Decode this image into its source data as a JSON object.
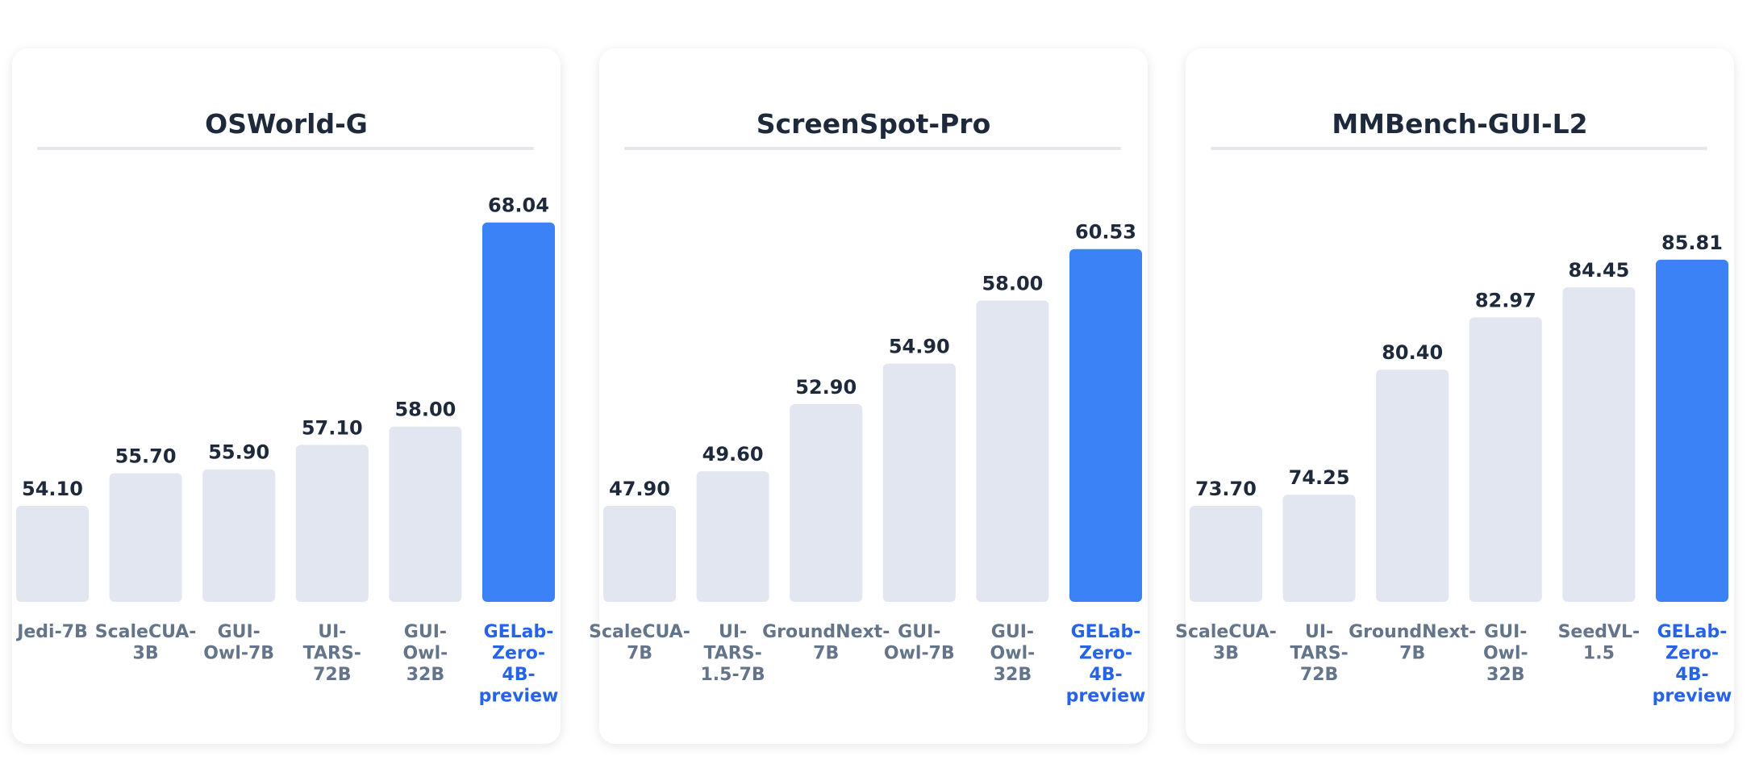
{
  "colors": {
    "bar_default": "#e2e6f0",
    "bar_highlight": "#3b82f6",
    "label_default": "#64748b",
    "label_highlight": "#2563eb",
    "value_text": "#1e293b",
    "title_text": "#1e293b"
  },
  "chart_data": [
    {
      "type": "bar",
      "title": "OSWorld-G",
      "categories": [
        "Jedi-7B",
        "ScaleCUA-3B",
        "GUI-Owl-7B",
        "UI-TARS-72B",
        "GUI-Owl-32B",
        "GELab-Zero-4B-preview"
      ],
      "category_lines": [
        [
          "Jedi-7B"
        ],
        [
          "ScaleCUA-",
          "3B"
        ],
        [
          "GUI-",
          "Owl-7B"
        ],
        [
          "UI-",
          "TARS-",
          "72B"
        ],
        [
          "GUI-",
          "Owl-",
          "32B"
        ],
        [
          "GELab-",
          "Zero-",
          "4B-",
          "preview"
        ]
      ],
      "values": [
        54.1,
        55.7,
        55.9,
        57.1,
        58.0,
        68.04
      ],
      "value_labels": [
        "54.10",
        "55.70",
        "55.90",
        "57.10",
        "58.00",
        "68.04"
      ],
      "highlight": "GELab-Zero-4B-preview",
      "xlabel": "",
      "ylabel": "",
      "grid": false
    },
    {
      "type": "bar",
      "title": "ScreenSpot-Pro",
      "categories": [
        "ScaleCUA-7B",
        "UI-TARS-1.5-7B",
        "GroundNext-7B",
        "GUI-Owl-7B",
        "GUI-Owl-32B",
        "GELab-Zero-4B-preview"
      ],
      "category_lines": [
        [
          "ScaleCUA-",
          "7B"
        ],
        [
          "UI-",
          "TARS-",
          "1.5-7B"
        ],
        [
          "GroundNext-",
          "7B"
        ],
        [
          "GUI-",
          "Owl-7B"
        ],
        [
          "GUI-",
          "Owl-",
          "32B"
        ],
        [
          "GELab-",
          "Zero-",
          "4B-",
          "preview"
        ]
      ],
      "values": [
        47.9,
        49.6,
        52.9,
        54.9,
        58.0,
        60.53
      ],
      "value_labels": [
        "47.90",
        "49.60",
        "52.90",
        "54.90",
        "58.00",
        "60.53"
      ],
      "highlight": "GELab-Zero-4B-preview",
      "xlabel": "",
      "ylabel": "",
      "grid": false
    },
    {
      "type": "bar",
      "title": "MMBench-GUI-L2",
      "categories": [
        "ScaleCUA-3B",
        "UI-TARS-72B",
        "GroundNext-7B",
        "GUI-Owl-32B",
        "SeedVL-1.5",
        "GELab-Zero-4B-preview"
      ],
      "category_lines": [
        [
          "ScaleCUA-",
          "3B"
        ],
        [
          "UI-",
          "TARS-",
          "72B"
        ],
        [
          "GroundNext-",
          "7B"
        ],
        [
          "GUI-",
          "Owl-",
          "32B"
        ],
        [
          "SeedVL-",
          "1.5"
        ],
        [
          "GELab-",
          "Zero-",
          "4B-",
          "preview"
        ]
      ],
      "values": [
        73.7,
        74.25,
        80.4,
        82.97,
        84.45,
        85.81
      ],
      "value_labels": [
        "73.70",
        "74.25",
        "80.40",
        "82.97",
        "84.45",
        "85.81"
      ],
      "highlight": "GELab-Zero-4B-preview",
      "xlabel": "",
      "ylabel": "",
      "grid": false
    }
  ]
}
